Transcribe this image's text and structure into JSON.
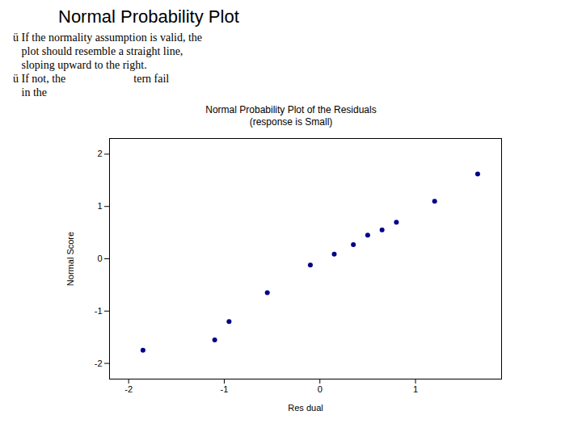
{
  "chart_data": {
    "type": "scatter",
    "title": "Normal Probability Plot",
    "subtitle": [
      "Normal Probability Plot of the Residuals",
      "(response is Small)"
    ],
    "annotations": [
      "ü If the normality assumption is valid, the",
      "   plot should resemble a straight line,",
      "   sloping upward to the right.",
      "ü If not, the                        tern fail",
      "   in the"
    ],
    "x_label": "Res dual",
    "y_label": "Normal Score",
    "x": [
      -1.85,
      -1.1,
      -0.95,
      -0.55,
      -0.1,
      0.15,
      0.35,
      0.5,
      0.65,
      0.8,
      1.2,
      1.65
    ],
    "values": [
      -1.75,
      -1.55,
      -1.2,
      -0.65,
      -0.12,
      0.09,
      0.27,
      0.45,
      0.55,
      0.7,
      1.1,
      1.62
    ],
    "color": "#00008b",
    "xlim": [
      -2.2,
      1.9
    ],
    "ylim": [
      -2.3,
      2.3
    ],
    "xticks": [
      -2,
      -1,
      0,
      1
    ],
    "yticks": [
      -2,
      -1,
      0,
      1,
      2
    ],
    "grid": false
  }
}
